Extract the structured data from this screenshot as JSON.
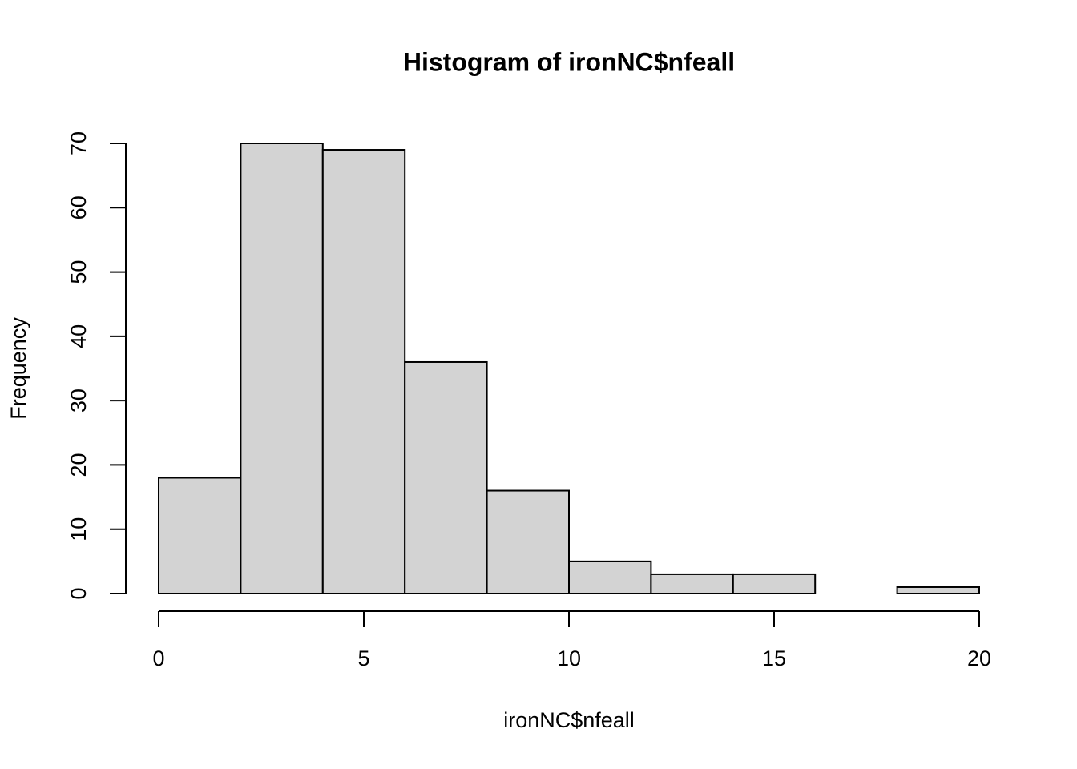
{
  "chart_data": {
    "type": "histogram",
    "title": "Histogram of ironNC$nfeall",
    "x_label": "ironNC$nfeall",
    "y_label": "Frequency",
    "bins": [
      0,
      2,
      4,
      6,
      8,
      10,
      12,
      14,
      16,
      18,
      20
    ],
    "values": [
      18,
      70,
      69,
      36,
      16,
      5,
      3,
      3,
      0,
      1
    ],
    "color": "#d3d3d3",
    "xlim": [
      0,
      20
    ],
    "xticks": [
      0,
      5,
      10,
      15,
      20
    ],
    "ylim": [
      0,
      70
    ],
    "yticks": [
      0,
      10,
      20,
      30,
      40,
      50,
      60,
      70
    ]
  }
}
